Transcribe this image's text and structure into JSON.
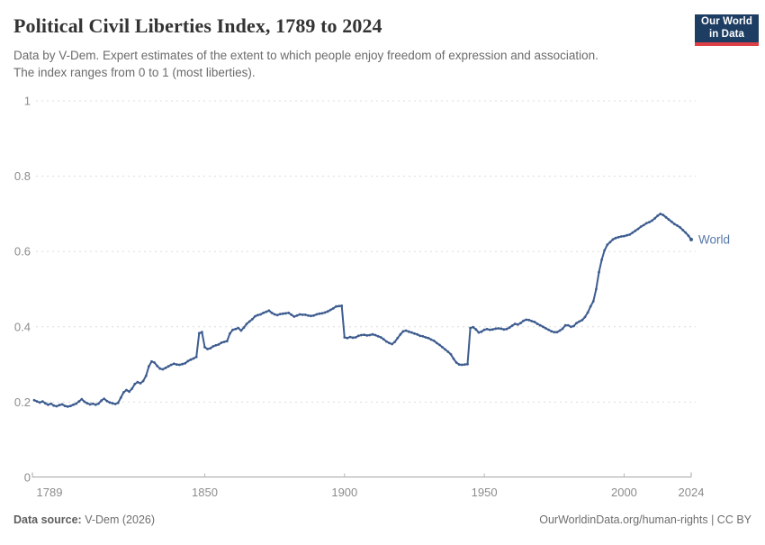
{
  "header": {
    "title": "Political Civil Liberties Index, 1789 to 2024",
    "subtitle_line1": "Data by V-Dem. Expert estimates of the extent to which people enjoy freedom of expression and association.",
    "subtitle_line2": "The index ranges from 0 to 1 (most liberties)."
  },
  "logo": {
    "line1": "Our World",
    "line2": "in Data"
  },
  "footer": {
    "source_label": "Data source:",
    "source_value": " V-Dem (2026)",
    "right_text": "OurWorldinData.org/human-rights | CC BY"
  },
  "colors": {
    "line": "#3d5c8f",
    "series_label": "#5778a9",
    "grid": "#dcdcdc",
    "axis": "#a5a5a5",
    "tick": "#b8b8b8",
    "tick_label": "#8c8c8c"
  },
  "chart_data": {
    "type": "line",
    "title": "Political Civil Liberties Index, 1789 to 2024",
    "xlabel": "",
    "ylabel": "",
    "xlim": [
      1789,
      2024
    ],
    "ylim": [
      0,
      1
    ],
    "grid": "dashed-horizontal",
    "legend_position": "end-of-line",
    "x_ticks": [
      {
        "year": 1789,
        "label": "1789"
      },
      {
        "year": 1850,
        "label": "1850"
      },
      {
        "year": 1900,
        "label": "1900"
      },
      {
        "year": 1950,
        "label": "1950"
      },
      {
        "year": 2000,
        "label": "2000"
      },
      {
        "year": 2024,
        "label": "2024"
      }
    ],
    "y_ticks": [
      {
        "v": 0,
        "label": "0"
      },
      {
        "v": 0.2,
        "label": "0.2"
      },
      {
        "v": 0.4,
        "label": "0.4"
      },
      {
        "v": 0.6,
        "label": "0.6"
      },
      {
        "v": 0.8,
        "label": "0.8"
      },
      {
        "v": 1,
        "label": "1"
      }
    ],
    "series": [
      {
        "name": "World",
        "start_year": 1789,
        "end_year": 2024,
        "values": [
          0.205,
          0.202,
          0.199,
          0.202,
          0.197,
          0.193,
          0.196,
          0.191,
          0.189,
          0.192,
          0.194,
          0.19,
          0.188,
          0.19,
          0.193,
          0.196,
          0.202,
          0.208,
          0.201,
          0.197,
          0.194,
          0.196,
          0.193,
          0.196,
          0.204,
          0.209,
          0.203,
          0.199,
          0.197,
          0.195,
          0.198,
          0.212,
          0.226,
          0.232,
          0.228,
          0.236,
          0.248,
          0.253,
          0.25,
          0.256,
          0.27,
          0.295,
          0.308,
          0.305,
          0.296,
          0.289,
          0.287,
          0.291,
          0.295,
          0.299,
          0.302,
          0.3,
          0.299,
          0.301,
          0.303,
          0.309,
          0.313,
          0.316,
          0.32,
          0.383,
          0.386,
          0.346,
          0.341,
          0.343,
          0.348,
          0.351,
          0.353,
          0.358,
          0.36,
          0.362,
          0.382,
          0.392,
          0.394,
          0.397,
          0.39,
          0.398,
          0.408,
          0.414,
          0.42,
          0.428,
          0.431,
          0.433,
          0.437,
          0.44,
          0.443,
          0.437,
          0.433,
          0.431,
          0.434,
          0.435,
          0.436,
          0.437,
          0.432,
          0.427,
          0.43,
          0.433,
          0.432,
          0.432,
          0.43,
          0.429,
          0.43,
          0.433,
          0.435,
          0.436,
          0.438,
          0.441,
          0.445,
          0.449,
          0.454,
          0.455,
          0.456,
          0.372,
          0.37,
          0.373,
          0.371,
          0.372,
          0.376,
          0.378,
          0.379,
          0.377,
          0.378,
          0.38,
          0.378,
          0.375,
          0.372,
          0.367,
          0.361,
          0.357,
          0.354,
          0.36,
          0.37,
          0.38,
          0.388,
          0.39,
          0.387,
          0.385,
          0.382,
          0.38,
          0.376,
          0.375,
          0.372,
          0.37,
          0.366,
          0.363,
          0.357,
          0.352,
          0.346,
          0.34,
          0.334,
          0.327,
          0.315,
          0.305,
          0.3,
          0.299,
          0.3,
          0.301,
          0.397,
          0.399,
          0.393,
          0.385,
          0.387,
          0.392,
          0.394,
          0.392,
          0.393,
          0.395,
          0.396,
          0.395,
          0.393,
          0.394,
          0.398,
          0.403,
          0.408,
          0.406,
          0.41,
          0.416,
          0.419,
          0.418,
          0.415,
          0.413,
          0.408,
          0.404,
          0.4,
          0.396,
          0.392,
          0.388,
          0.386,
          0.386,
          0.39,
          0.395,
          0.404,
          0.404,
          0.4,
          0.402,
          0.41,
          0.414,
          0.418,
          0.426,
          0.438,
          0.454,
          0.468,
          0.5,
          0.545,
          0.578,
          0.603,
          0.618,
          0.625,
          0.632,
          0.636,
          0.638,
          0.64,
          0.641,
          0.643,
          0.645,
          0.65,
          0.655,
          0.66,
          0.666,
          0.67,
          0.675,
          0.678,
          0.682,
          0.688,
          0.695,
          0.7,
          0.697,
          0.691,
          0.685,
          0.679,
          0.673,
          0.669,
          0.664,
          0.657,
          0.65,
          0.642,
          0.632
        ]
      }
    ]
  }
}
